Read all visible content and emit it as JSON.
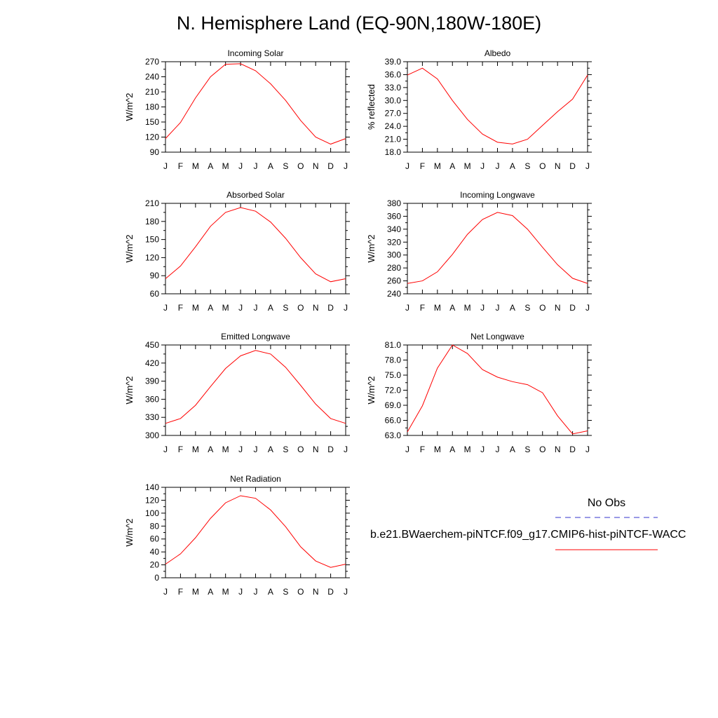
{
  "page": {
    "title": "N. Hemisphere Land (EQ-90N,180W-180E)"
  },
  "legend": {
    "obs_label": "No Obs",
    "obs_color": "#3333cc",
    "obs_style": "dashed",
    "model_label": "b.e21.BWaerchem-piNTCF.f09_g17.CMIP6-hist-piNTCF-WACC",
    "model_color": "#ff0000",
    "model_style": "solid"
  },
  "chart_data": [
    {
      "type": "line",
      "title": "Incoming Solar",
      "ylabel": "W/m^2",
      "x": [
        "J",
        "F",
        "M",
        "A",
        "M",
        "J",
        "J",
        "A",
        "S",
        "O",
        "N",
        "D",
        "J"
      ],
      "ylim": [
        90,
        270
      ],
      "yticks": [
        "90",
        "120",
        "150",
        "180",
        "210",
        "240",
        "270"
      ],
      "series": [
        {
          "values": [
            117,
            149,
            198,
            240,
            265,
            266,
            252,
            226,
            193,
            153,
            120,
            106,
            117
          ]
        }
      ]
    },
    {
      "type": "line",
      "title": "Albedo",
      "ylabel": "% reflected",
      "x": [
        "J",
        "F",
        "M",
        "A",
        "M",
        "J",
        "J",
        "A",
        "S",
        "O",
        "N",
        "D",
        "J"
      ],
      "ylim": [
        18,
        39
      ],
      "yticks": [
        "18.0",
        "21.0",
        "24.0",
        "27.0",
        "30.0",
        "33.0",
        "36.0",
        "39.0"
      ],
      "series": [
        {
          "values": [
            35.9,
            37.5,
            35.0,
            30.0,
            25.6,
            22.2,
            20.3,
            19.9,
            21.0,
            24.2,
            27.4,
            30.3,
            35.9
          ]
        }
      ]
    },
    {
      "type": "line",
      "title": "Absorbed Solar",
      "ylabel": "W/m^2",
      "x": [
        "J",
        "F",
        "M",
        "A",
        "M",
        "J",
        "J",
        "A",
        "S",
        "O",
        "N",
        "D",
        "J"
      ],
      "ylim": [
        60,
        210
      ],
      "yticks": [
        "60",
        "90",
        "120",
        "150",
        "180",
        "210"
      ],
      "series": [
        {
          "values": [
            85,
            106,
            138,
            172,
            195,
            203,
            197,
            179,
            152,
            120,
            93,
            80,
            85
          ]
        }
      ]
    },
    {
      "type": "line",
      "title": "Incoming Longwave",
      "ylabel": "W/m^2",
      "x": [
        "J",
        "F",
        "M",
        "A",
        "M",
        "J",
        "J",
        "A",
        "S",
        "O",
        "N",
        "D",
        "J"
      ],
      "ylim": [
        240,
        380
      ],
      "yticks": [
        "240",
        "260",
        "280",
        "300",
        "320",
        "340",
        "360",
        "380"
      ],
      "series": [
        {
          "values": [
            256,
            260,
            274,
            301,
            332,
            355,
            366,
            361,
            340,
            312,
            285,
            264,
            256
          ]
        }
      ]
    },
    {
      "type": "line",
      "title": "Emitted Longwave",
      "ylabel": "W/m^2",
      "x": [
        "J",
        "F",
        "M",
        "A",
        "M",
        "J",
        "J",
        "A",
        "S",
        "O",
        "N",
        "D",
        "J"
      ],
      "ylim": [
        300,
        450
      ],
      "yticks": [
        "300",
        "330",
        "360",
        "390",
        "420",
        "450"
      ],
      "series": [
        {
          "values": [
            320,
            328,
            350,
            381,
            411,
            432,
            441,
            435,
            413,
            383,
            352,
            328,
            320
          ]
        }
      ]
    },
    {
      "type": "line",
      "title": "Net Longwave",
      "ylabel": "W/m^2",
      "x": [
        "J",
        "F",
        "M",
        "A",
        "M",
        "J",
        "J",
        "A",
        "S",
        "O",
        "N",
        "D",
        "J"
      ],
      "ylim": [
        63,
        81
      ],
      "yticks": [
        "63.0",
        "66.0",
        "69.0",
        "72.0",
        "75.0",
        "78.0",
        "81.0"
      ],
      "series": [
        {
          "values": [
            63.7,
            68.9,
            76.4,
            81.0,
            79.3,
            76.1,
            74.6,
            73.7,
            73.1,
            71.5,
            66.9,
            63.3,
            63.9
          ]
        }
      ]
    },
    {
      "type": "line",
      "title": "Net Radiation",
      "ylabel": "W/m^2",
      "x": [
        "J",
        "F",
        "M",
        "A",
        "M",
        "J",
        "J",
        "A",
        "S",
        "O",
        "N",
        "D",
        "J"
      ],
      "ylim": [
        0,
        140
      ],
      "yticks": [
        "0",
        "20",
        "40",
        "60",
        "80",
        "100",
        "120",
        "140"
      ],
      "series": [
        {
          "values": [
            21,
            37,
            62,
            92,
            116,
            127,
            123,
            105,
            79,
            48,
            26,
            16,
            21
          ]
        }
      ]
    }
  ]
}
